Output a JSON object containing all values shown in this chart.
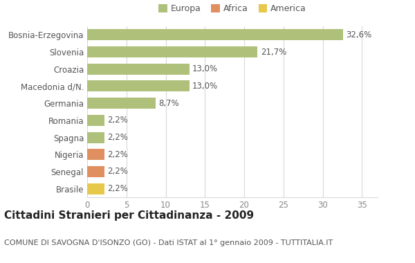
{
  "categories": [
    "Brasile",
    "Senegal",
    "Nigeria",
    "Spagna",
    "Romania",
    "Germania",
    "Macedonia d/N.",
    "Croazia",
    "Slovenia",
    "Bosnia-Erzegovina"
  ],
  "values": [
    2.2,
    2.2,
    2.2,
    2.2,
    2.2,
    8.7,
    13.0,
    13.0,
    21.7,
    32.6
  ],
  "labels": [
    "2,2%",
    "2,2%",
    "2,2%",
    "2,2%",
    "2,2%",
    "8,7%",
    "13,0%",
    "13,0%",
    "21,7%",
    "32,6%"
  ],
  "colors": [
    "#e8c84a",
    "#e09060",
    "#e09060",
    "#afc07a",
    "#afc07a",
    "#afc07a",
    "#afc07a",
    "#afc07a",
    "#afc07a",
    "#afc07a"
  ],
  "legend_items": [
    {
      "label": "Europa",
      "color": "#afc07a"
    },
    {
      "label": "Africa",
      "color": "#e09060"
    },
    {
      "label": "America",
      "color": "#e8c84a"
    }
  ],
  "title": "Cittadini Stranieri per Cittadinanza - 2009",
  "subtitle": "COMUNE DI SAVOGNA D'ISONZO (GO) - Dati ISTAT al 1° gennaio 2009 - TUTTITALIA.IT",
  "xlim": [
    0,
    37
  ],
  "xticks": [
    0,
    5,
    10,
    15,
    20,
    25,
    30,
    35
  ],
  "background_color": "#ffffff",
  "grid_color": "#d8d8d8",
  "bar_height": 0.65,
  "label_fontsize": 8.5,
  "title_fontsize": 11,
  "subtitle_fontsize": 8,
  "yticklabel_fontsize": 8.5,
  "xticklabel_fontsize": 8.5
}
